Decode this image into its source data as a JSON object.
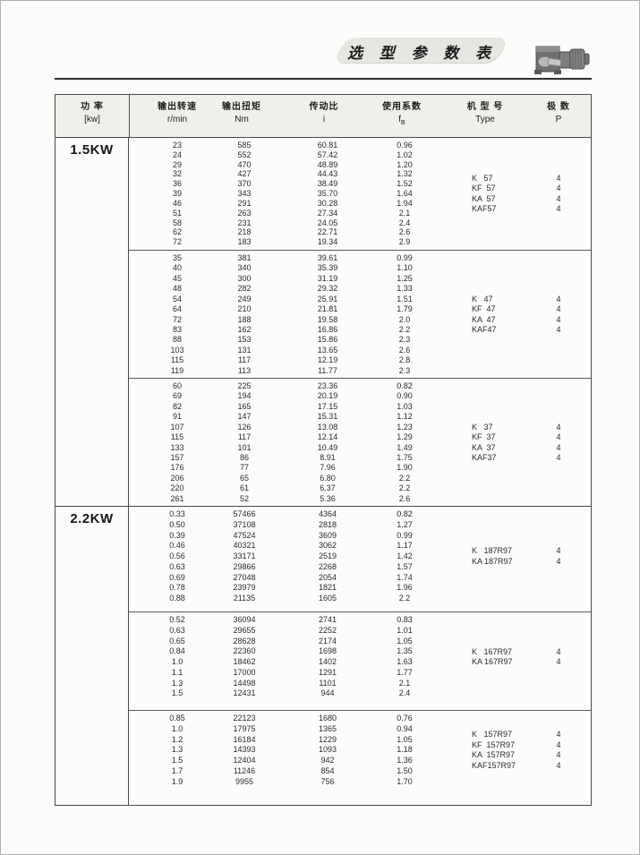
{
  "page": {
    "title": "选 型 参 数 表"
  },
  "table": {
    "headers": [
      {
        "l1": "功  率",
        "l2": "[kw]"
      },
      {
        "l1": "输出转速",
        "l2": "r/min"
      },
      {
        "l1": "输出扭矩",
        "l2": "Nm"
      },
      {
        "l1": "传动比",
        "l2": "i"
      },
      {
        "l1": "使用系数",
        "l2": "f",
        "sub": "B"
      },
      {
        "l1": "机 型 号",
        "l2": "Type"
      },
      {
        "l1": "极  数",
        "l2": "P"
      }
    ],
    "groups": [
      {
        "power": "1.5KW",
        "blocks": [
          {
            "rows": [
              [
                "23",
                "585",
                "60.81",
                "0.96"
              ],
              [
                "24",
                "552",
                "57.42",
                "1.02"
              ],
              [
                "29",
                "470",
                "48.89",
                "1.20"
              ],
              [
                "32",
                "427",
                "44.43",
                "1.32"
              ],
              [
                "36",
                "370",
                "38.49",
                "1.52"
              ],
              [
                "39",
                "343",
                "35.70",
                "1.64"
              ],
              [
                "46",
                "291",
                "30.28",
                "1.94"
              ],
              [
                "51",
                "263",
                "27.34",
                "2.1"
              ],
              [
                "58",
                "231",
                "24.05",
                "2.4"
              ],
              [
                "62",
                "218",
                "22.71",
                "2.6"
              ],
              [
                "72",
                "183",
                "19.34",
                "2.9"
              ]
            ],
            "types": [
              [
                "K   57",
                "4"
              ],
              [
                "KF  57",
                "4"
              ],
              [
                "KA  57",
                "4"
              ],
              [
                "KAF57",
                "4"
              ]
            ]
          },
          {
            "rows": [
              [
                "35",
                "381",
                "39.61",
                "0.99"
              ],
              [
                "40",
                "340",
                "35.39",
                "1.10"
              ],
              [
                "45",
                "300",
                "31.19",
                "1.25"
              ],
              [
                "48",
                "282",
                "29.32",
                "1.33"
              ],
              [
                "54",
                "249",
                "25.91",
                "1.51"
              ],
              [
                "64",
                "210",
                "21.81",
                "1.79"
              ],
              [
                "72",
                "188",
                "19.58",
                "2.0"
              ],
              [
                "83",
                "162",
                "16.86",
                "2.2"
              ],
              [
                "88",
                "153",
                "15.86",
                "2.3"
              ],
              [
                "103",
                "131",
                "13.65",
                "2.6"
              ],
              [
                "115",
                "117",
                "12.19",
                "2.8"
              ],
              [
                "119",
                "113",
                "11.77",
                "2.3"
              ]
            ],
            "types": [
              [
                "K   47",
                "4"
              ],
              [
                "KF  47",
                "4"
              ],
              [
                "KA  47",
                "4"
              ],
              [
                "KAF47",
                "4"
              ]
            ]
          },
          {
            "rows": [
              [
                "60",
                "225",
                "23.36",
                "0.82"
              ],
              [
                "69",
                "194",
                "20.19",
                "0.90"
              ],
              [
                "82",
                "165",
                "17.15",
                "1.03"
              ],
              [
                "91",
                "147",
                "15.31",
                "1.12"
              ],
              [
                "107",
                "126",
                "13.08",
                "1.23"
              ],
              [
                "115",
                "117",
                "12.14",
                "1.29"
              ],
              [
                "133",
                "101",
                "10.49",
                "1.49"
              ],
              [
                "157",
                "86",
                "8.91",
                "1.75"
              ],
              [
                "176",
                "77",
                "7.96",
                "1.90"
              ],
              [
                "206",
                "65",
                "6.80",
                "2.2"
              ],
              [
                "220",
                "61",
                "6.37",
                "2.2"
              ],
              [
                "261",
                "52",
                "5.36",
                "2.6"
              ]
            ],
            "types": [
              [
                "K   37",
                "4"
              ],
              [
                "KF  37",
                "4"
              ],
              [
                "KA  37",
                "4"
              ],
              [
                "KAF37",
                "4"
              ]
            ]
          }
        ]
      },
      {
        "power": "2.2KW",
        "blocks": [
          {
            "rows": [
              [
                "0.33",
                "57466",
                "4364",
                "0.82"
              ],
              [
                "0.50",
                "37108",
                "2818",
                "1.27"
              ],
              [
                "0.39",
                "47524",
                "3609",
                "0.99"
              ],
              [
                "0.46",
                "40321",
                "3062",
                "1.17"
              ],
              [
                "0.56",
                "33171",
                "2519",
                "1.42"
              ],
              [
                "0.63",
                "29866",
                "2268",
                "1.57"
              ],
              [
                "0.69",
                "27048",
                "2054",
                "1.74"
              ],
              [
                "0.78",
                "23979",
                "1821",
                "1.96"
              ],
              [
                "0.88",
                "21135",
                "1605",
                "2.2"
              ]
            ],
            "types": [
              [
                "K   187R97",
                "4"
              ],
              [
                "KA 187R97",
                "4"
              ]
            ]
          },
          {
            "rows": [
              [
                "0.52",
                "36094",
                "2741",
                "0.83"
              ],
              [
                "0.63",
                "29655",
                "2252",
                "1.01"
              ],
              [
                "0.65",
                "28628",
                "2174",
                "1.05"
              ],
              [
                "0.84",
                "22360",
                "1698",
                "1.35"
              ],
              [
                "1.0",
                "18462",
                "1402",
                "1.63"
              ],
              [
                "1.1",
                "17000",
                "1291",
                "1.77"
              ],
              [
                "1.3",
                "14498",
                "1101",
                "2.1"
              ],
              [
                "1.5",
                "12431",
                "944",
                "2.4"
              ]
            ],
            "types": [
              [
                "K   167R97",
                "4"
              ],
              [
                "KA 167R97",
                "4"
              ]
            ]
          },
          {
            "rows": [
              [
                "0.85",
                "22123",
                "1680",
                "0.76"
              ],
              [
                "1.0",
                "17975",
                "1365",
                "0.94"
              ],
              [
                "1.2",
                "16184",
                "1229",
                "1.05"
              ],
              [
                "1.3",
                "14393",
                "1093",
                "1.18"
              ],
              [
                "1.5",
                "12404",
                "942",
                "1.36"
              ],
              [
                "1.7",
                "11246",
                "854",
                "1.50"
              ],
              [
                "1.9",
                "9955",
                "756",
                "1.70"
              ]
            ],
            "types": [
              [
                "K   157R97",
                "4"
              ],
              [
                "KF  157R97",
                "4"
              ],
              [
                "KA  157R97",
                "4"
              ],
              [
                "KAF157R97",
                "4"
              ]
            ]
          }
        ]
      }
    ]
  }
}
